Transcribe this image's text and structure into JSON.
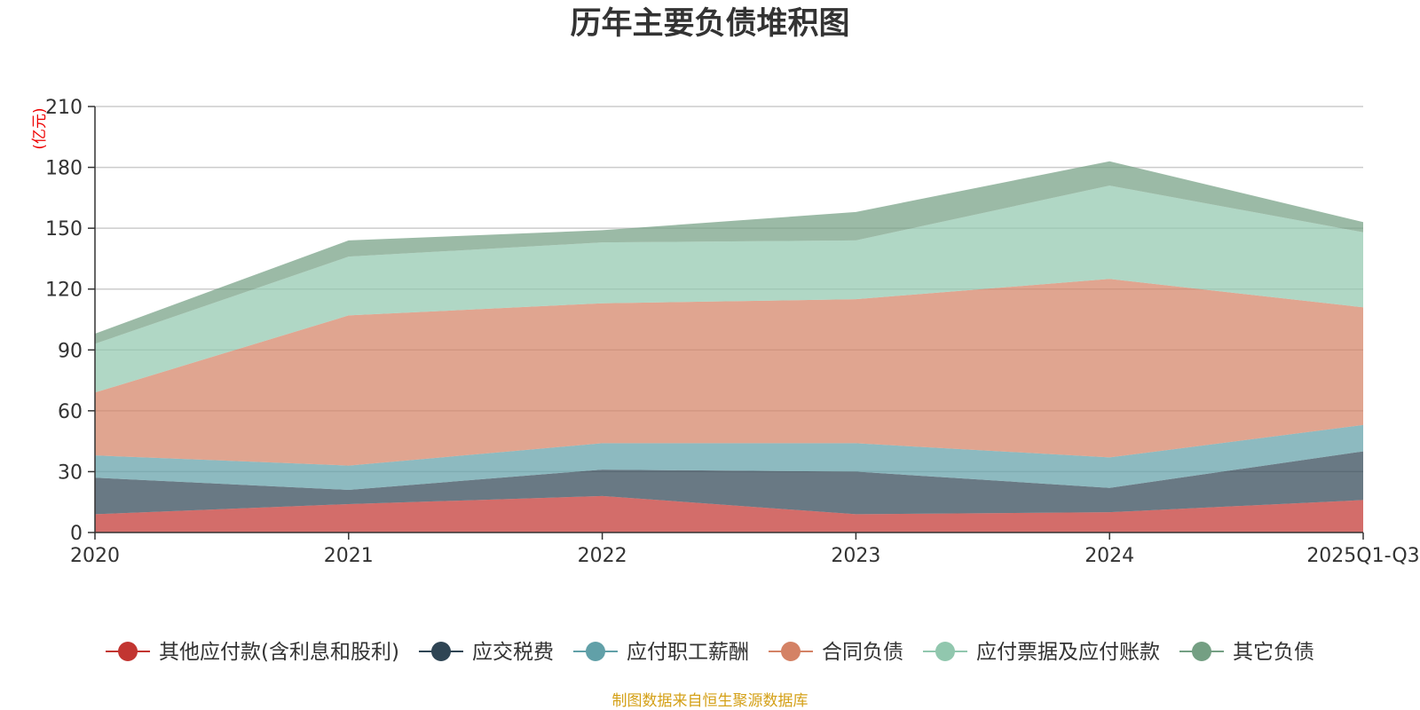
{
  "chart_data": {
    "type": "area",
    "stacked": true,
    "title": "历年主要负债堆积图",
    "unit_label": "(亿元)",
    "categories": [
      "2020",
      "2021",
      "2022",
      "2023",
      "2024",
      "2025Q1-Q3"
    ],
    "ylim": [
      0,
      210
    ],
    "yticks": [
      0,
      30,
      60,
      90,
      120,
      150,
      180,
      210
    ],
    "grid": true,
    "legend_position": "bottom",
    "series": [
      {
        "name": "其他应付款(含利息和股利)",
        "color": "#c23531",
        "values": [
          9,
          14,
          18,
          9,
          10,
          16
        ]
      },
      {
        "name": "应交税费",
        "color": "#2f4554",
        "values": [
          18,
          7,
          13,
          21,
          12,
          24
        ]
      },
      {
        "name": "应付职工薪酬",
        "color": "#61a0a8",
        "values": [
          11,
          12,
          13,
          14,
          15,
          13
        ]
      },
      {
        "name": "合同负债",
        "color": "#d48265",
        "values": [
          31,
          74,
          69,
          71,
          88,
          58
        ]
      },
      {
        "name": "应付票据及应付账款",
        "color": "#91c7ae",
        "values": [
          24,
          29,
          30,
          29,
          46,
          37
        ]
      },
      {
        "name": "其它负债",
        "color": "#749f83",
        "values": [
          5,
          8,
          6,
          14,
          12,
          5
        ]
      }
    ],
    "source_note": "制图数据来自恒生聚源数据库"
  }
}
